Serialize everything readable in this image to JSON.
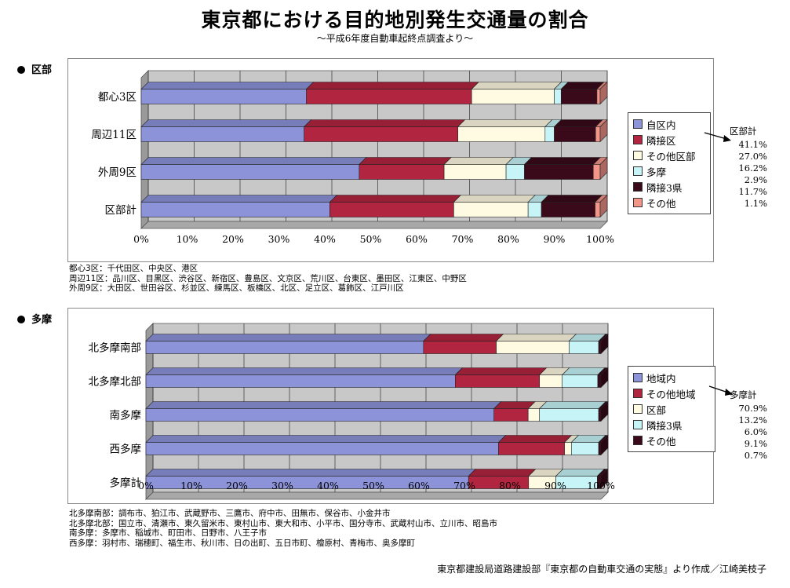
{
  "title": "東京都における目的地別発生交通量の割合",
  "subtitle": "〜平成6年度自動車起終点調査より〜",
  "credit": "東京都建設局道路建設部『東京都の自動車交通の実態』より作成／江崎美枝子",
  "sections": {
    "ku": {
      "label": "区部",
      "notes": [
        "都心3区：千代田区、中央区、港区",
        "周辺11区：品川区、目黒区、渋谷区、新宿区、豊島区、文京区、荒川区、台東区、墨田区、江東区、中野区",
        "外周9区：大田区、世田谷区、杉並区、練馬区、板橋区、北区、足立区、葛飾区、江戸川区"
      ],
      "totals_label": "区部計",
      "totals": [
        "41.1%",
        "27.0%",
        "16.2%",
        "2.9%",
        "11.7%",
        "1.1%"
      ]
    },
    "tama": {
      "label": "多摩",
      "notes": [
        "北多摩南部：調布市、狛江市、武蔵野市、三鷹市、府中市、田無市、保谷市、小金井市",
        "北多摩北部：国立市、清瀬市、東久留米市、東村山市、東大和市、小平市、国分寺市、武蔵村山市、立川市、昭島市",
        "南多摩：多摩市、稲城市、町田市、日野市、八王子市",
        "西多摩：羽村市、瑞穂町、福生市、秋川市、日の出町、五日市町、檜原村、青梅市、奥多摩町"
      ],
      "totals_label": "多摩計",
      "totals": [
        "70.9%",
        "13.2%",
        "6.0%",
        "9.1%",
        "0.7%"
      ]
    }
  },
  "chart_data": [
    {
      "type": "bar",
      "orientation": "horizontal",
      "stacked": "percent",
      "categories": [
        "都心3区",
        "周辺11区",
        "外周9区",
        "区部計"
      ],
      "x_ticks": [
        "0%",
        "10%",
        "20%",
        "30%",
        "40%",
        "50%",
        "60%",
        "70%",
        "80%",
        "90%",
        "100%"
      ],
      "xlim": [
        0,
        100
      ],
      "legend_position": "right",
      "series": [
        {
          "name": "自区内",
          "color": "#8c93d9",
          "values": [
            36.0,
            35.5,
            47.5,
            41.1
          ]
        },
        {
          "name": "隣接区",
          "color": "#b22540",
          "values": [
            36.0,
            33.5,
            18.5,
            27.0
          ]
        },
        {
          "name": "その他区部",
          "color": "#fffbe3",
          "values": [
            18.0,
            19.0,
            13.5,
            16.2
          ]
        },
        {
          "name": "多摩",
          "color": "#c6f4f7",
          "values": [
            1.5,
            2.0,
            4.0,
            2.9
          ]
        },
        {
          "name": "隣接3県",
          "color": "#3a0a1a",
          "values": [
            7.8,
            9.0,
            15.0,
            11.7
          ]
        },
        {
          "name": "その他",
          "color": "#f4958a",
          "values": [
            0.7,
            1.0,
            1.5,
            1.1
          ]
        }
      ]
    },
    {
      "type": "bar",
      "orientation": "horizontal",
      "stacked": "percent",
      "categories": [
        "北多摩南部",
        "北多摩北部",
        "南多摩",
        "西多摩",
        "多摩計"
      ],
      "x_ticks": [
        "0%",
        "10%",
        "20%",
        "30%",
        "40%",
        "50%",
        "60%",
        "70%",
        "80%",
        "90%",
        "100%"
      ],
      "xlim": [
        0,
        100
      ],
      "legend_position": "right",
      "series": [
        {
          "name": "地域内",
          "color": "#8c93d9",
          "values": [
            61.0,
            68.0,
            76.5,
            77.5,
            70.9
          ]
        },
        {
          "name": "その他地域",
          "color": "#b22540",
          "values": [
            16.0,
            18.5,
            7.5,
            14.5,
            13.2
          ]
        },
        {
          "name": "区部",
          "color": "#fffbe3",
          "values": [
            16.0,
            5.0,
            2.5,
            1.5,
            6.0
          ]
        },
        {
          "name": "隣接3県",
          "color": "#c6f4f7",
          "values": [
            6.5,
            7.8,
            13.0,
            6.0,
            9.1
          ]
        },
        {
          "name": "その他",
          "color": "#3a0a1a",
          "values": [
            0.5,
            0.7,
            0.5,
            0.5,
            0.7
          ]
        }
      ]
    }
  ]
}
